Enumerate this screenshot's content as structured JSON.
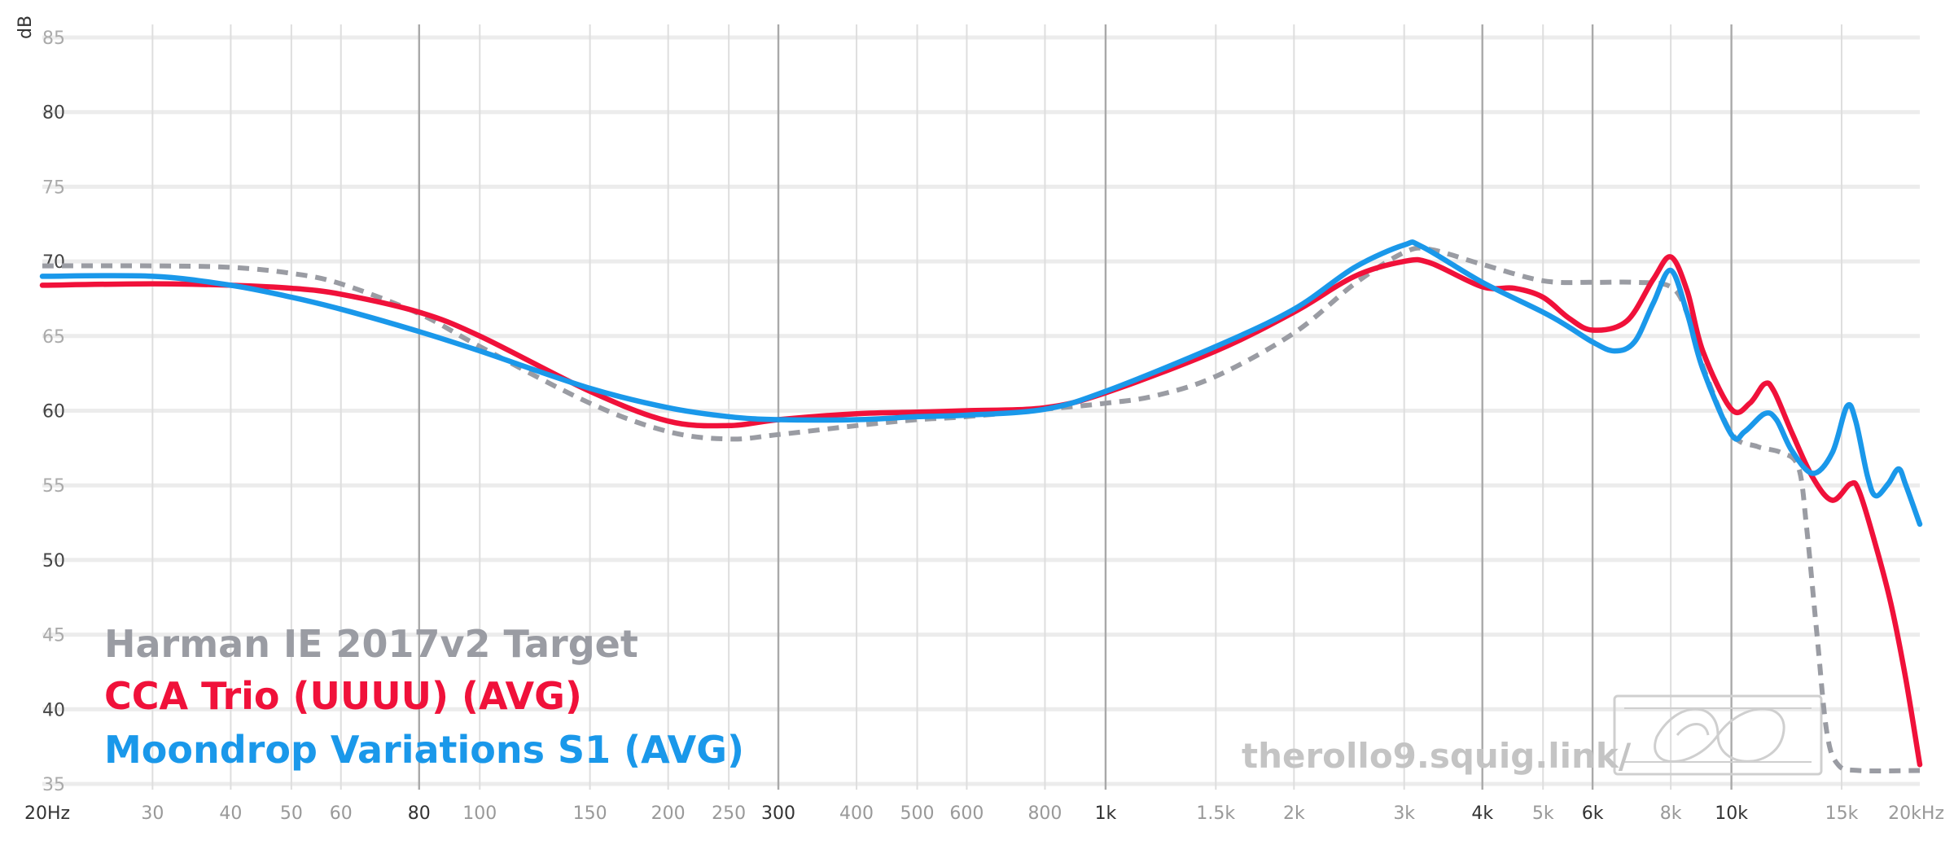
{
  "chart_data": {
    "type": "line",
    "ylabel": "dB",
    "x_scale": "log",
    "xlim": [
      20,
      20000
    ],
    "ylim": [
      35,
      85
    ],
    "y_ticks": [
      35,
      40,
      45,
      50,
      55,
      60,
      65,
      70,
      75,
      80,
      85
    ],
    "x_ticks": [
      {
        "f": 20,
        "label": "20Hz"
      },
      {
        "f": 30,
        "label": "30"
      },
      {
        "f": 40,
        "label": "40"
      },
      {
        "f": 50,
        "label": "50"
      },
      {
        "f": 60,
        "label": "60"
      },
      {
        "f": 80,
        "label": "80"
      },
      {
        "f": 100,
        "label": "100"
      },
      {
        "f": 150,
        "label": "150"
      },
      {
        "f": 200,
        "label": "200"
      },
      {
        "f": 250,
        "label": "250"
      },
      {
        "f": 300,
        "label": "300"
      },
      {
        "f": 400,
        "label": "400"
      },
      {
        "f": 500,
        "label": "500"
      },
      {
        "f": 600,
        "label": "600"
      },
      {
        "f": 800,
        "label": "800"
      },
      {
        "f": 1000,
        "label": "1k"
      },
      {
        "f": 1500,
        "label": "1.5k"
      },
      {
        "f": 2000,
        "label": "2k"
      },
      {
        "f": 3000,
        "label": "3k"
      },
      {
        "f": 4000,
        "label": "4k"
      },
      {
        "f": 5000,
        "label": "5k"
      },
      {
        "f": 6000,
        "label": "6k"
      },
      {
        "f": 8000,
        "label": "8k"
      },
      {
        "f": 10000,
        "label": "10k"
      },
      {
        "f": 15000,
        "label": "15k"
      },
      {
        "f": 20000,
        "label": "20kHz"
      }
    ],
    "grid": true,
    "legend_position": "bottom-left",
    "watermark": "therollo9.squig.link/",
    "series": [
      {
        "name": "Harman IE 2017v2 Target",
        "color": "#9a9ca3",
        "dashed": true,
        "points": [
          [
            20,
            69.7
          ],
          [
            30,
            69.7
          ],
          [
            40,
            69.6
          ],
          [
            50,
            69.2
          ],
          [
            60,
            68.5
          ],
          [
            80,
            66.5
          ],
          [
            100,
            64.3
          ],
          [
            150,
            60.5
          ],
          [
            200,
            58.6
          ],
          [
            250,
            58.1
          ],
          [
            300,
            58.4
          ],
          [
            400,
            59.0
          ],
          [
            500,
            59.4
          ],
          [
            600,
            59.6
          ],
          [
            800,
            60.1
          ],
          [
            1000,
            60.5
          ],
          [
            1200,
            61.0
          ],
          [
            1500,
            62.3
          ],
          [
            2000,
            65.2
          ],
          [
            2500,
            68.5
          ],
          [
            3000,
            70.6
          ],
          [
            3300,
            70.8
          ],
          [
            4000,
            69.8
          ],
          [
            5000,
            68.7
          ],
          [
            6000,
            68.6
          ],
          [
            7000,
            68.6
          ],
          [
            8000,
            68.3
          ],
          [
            8500,
            66.5
          ],
          [
            9000,
            63.0
          ],
          [
            10000,
            58.5
          ],
          [
            11000,
            57.6
          ],
          [
            12000,
            57.2
          ],
          [
            12800,
            56.2
          ],
          [
            13200,
            52.0
          ],
          [
            13700,
            45.0
          ],
          [
            14200,
            38.5
          ],
          [
            14800,
            36.3
          ],
          [
            16000,
            35.9
          ],
          [
            20000,
            35.9
          ]
        ]
      },
      {
        "name": "CCA Trio (UUUU) (AVG)",
        "color": "#f0113a",
        "dashed": false,
        "points": [
          [
            20,
            68.4
          ],
          [
            30,
            68.5
          ],
          [
            40,
            68.4
          ],
          [
            50,
            68.2
          ],
          [
            60,
            67.8
          ],
          [
            80,
            66.6
          ],
          [
            100,
            65.0
          ],
          [
            150,
            61.3
          ],
          [
            200,
            59.3
          ],
          [
            250,
            59.0
          ],
          [
            300,
            59.4
          ],
          [
            400,
            59.8
          ],
          [
            500,
            59.9
          ],
          [
            600,
            60.0
          ],
          [
            800,
            60.2
          ],
          [
            1000,
            61.2
          ],
          [
            1500,
            64.0
          ],
          [
            2000,
            66.6
          ],
          [
            2500,
            69.0
          ],
          [
            3000,
            70.0
          ],
          [
            3300,
            69.9
          ],
          [
            4000,
            68.3
          ],
          [
            4500,
            68.2
          ],
          [
            5000,
            67.6
          ],
          [
            5500,
            66.2
          ],
          [
            6000,
            65.4
          ],
          [
            6800,
            66.0
          ],
          [
            7500,
            68.8
          ],
          [
            8000,
            70.3
          ],
          [
            8500,
            68.0
          ],
          [
            9000,
            64.0
          ],
          [
            10000,
            60.1
          ],
          [
            10700,
            60.5
          ],
          [
            11300,
            61.8
          ],
          [
            11700,
            61.3
          ],
          [
            12500,
            58.5
          ],
          [
            13500,
            55.5
          ],
          [
            14500,
            54.0
          ],
          [
            15500,
            55.1
          ],
          [
            16000,
            54.6
          ],
          [
            17000,
            51.0
          ],
          [
            18000,
            47.0
          ],
          [
            19000,
            42.0
          ],
          [
            20000,
            36.3
          ]
        ]
      },
      {
        "name": "Moondrop Variations S1 (AVG)",
        "color": "#1a98ea",
        "dashed": false,
        "points": [
          [
            20,
            69.0
          ],
          [
            30,
            69.0
          ],
          [
            40,
            68.4
          ],
          [
            50,
            67.6
          ],
          [
            60,
            66.8
          ],
          [
            80,
            65.3
          ],
          [
            100,
            64.0
          ],
          [
            150,
            61.5
          ],
          [
            200,
            60.2
          ],
          [
            250,
            59.6
          ],
          [
            300,
            59.4
          ],
          [
            400,
            59.4
          ],
          [
            500,
            59.6
          ],
          [
            600,
            59.7
          ],
          [
            800,
            60.1
          ],
          [
            1000,
            61.3
          ],
          [
            1500,
            64.3
          ],
          [
            2000,
            66.8
          ],
          [
            2500,
            69.6
          ],
          [
            3000,
            71.1
          ],
          [
            3200,
            71.0
          ],
          [
            4000,
            68.6
          ],
          [
            5000,
            66.6
          ],
          [
            5500,
            65.6
          ],
          [
            6000,
            64.6
          ],
          [
            6500,
            64.0
          ],
          [
            7000,
            64.6
          ],
          [
            7500,
            67.2
          ],
          [
            8000,
            69.4
          ],
          [
            8500,
            66.5
          ],
          [
            9000,
            62.8
          ],
          [
            10000,
            58.4
          ],
          [
            10500,
            58.6
          ],
          [
            11300,
            59.8
          ],
          [
            11800,
            59.4
          ],
          [
            12500,
            57.3
          ],
          [
            13500,
            55.8
          ],
          [
            14500,
            57.2
          ],
          [
            15300,
            60.3
          ],
          [
            15800,
            59.3
          ],
          [
            16500,
            55.6
          ],
          [
            17000,
            54.3
          ],
          [
            17800,
            55.1
          ],
          [
            18500,
            56.1
          ],
          [
            19000,
            55.0
          ],
          [
            20000,
            52.4
          ]
        ]
      }
    ]
  }
}
